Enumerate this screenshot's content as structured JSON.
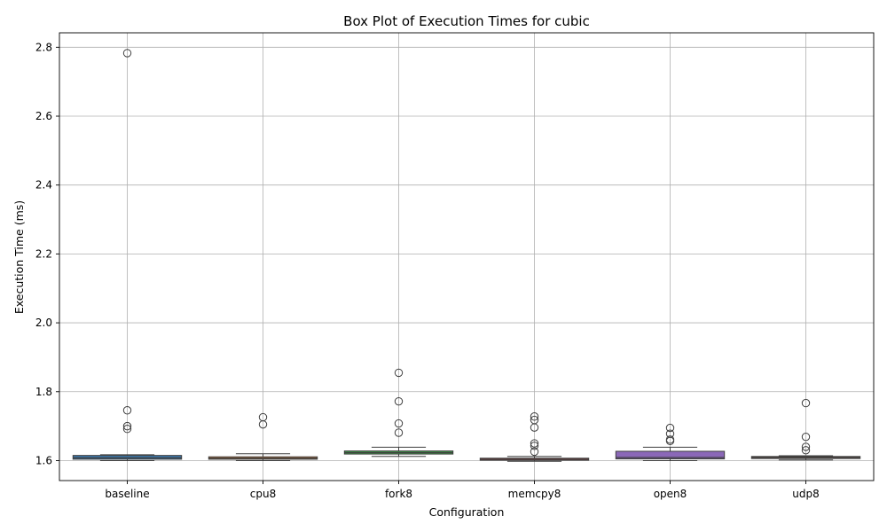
{
  "chart_data": {
    "type": "box",
    "title": "Box Plot of Execution Times for cubic",
    "xlabel": "Configuration",
    "ylabel": "Execution Time (ms)",
    "ylim": [
      1.542,
      2.842
    ],
    "yticks": [
      1.6,
      1.8,
      2.0,
      2.2,
      2.4,
      2.6,
      2.8
    ],
    "ytick_labels": [
      "1.6",
      "1.8",
      "2.0",
      "2.2",
      "2.4",
      "2.6",
      "2.8"
    ],
    "grid": true,
    "categories": [
      "baseline",
      "cpu8",
      "fork8",
      "memcpy8",
      "open8",
      "udp8"
    ],
    "boxes": [
      {
        "name": "baseline",
        "color": "#3a75a8",
        "whisker_low": 1.6,
        "q1": 1.604,
        "median": 1.608,
        "q3": 1.615,
        "whisker_high": 1.617,
        "outliers": [
          2.783,
          1.746,
          1.7,
          1.692
        ]
      },
      {
        "name": "cpu8",
        "color": "#d8803a",
        "whisker_low": 1.6,
        "q1": 1.604,
        "median": 1.607,
        "q3": 1.611,
        "whisker_high": 1.62,
        "outliers": [
          1.726,
          1.705
        ]
      },
      {
        "name": "fork8",
        "color": "#3f9a4a",
        "whisker_low": 1.612,
        "q1": 1.619,
        "median": 1.623,
        "q3": 1.628,
        "whisker_high": 1.639,
        "outliers": [
          1.855,
          1.772,
          1.708,
          1.681
        ]
      },
      {
        "name": "memcpy8",
        "color": "#c0403f",
        "whisker_low": 1.598,
        "q1": 1.601,
        "median": 1.604,
        "q3": 1.607,
        "whisker_high": 1.612,
        "outliers": [
          1.728,
          1.718,
          1.696,
          1.65,
          1.643,
          1.626
        ]
      },
      {
        "name": "open8",
        "color": "#8b68b8",
        "whisker_low": 1.6,
        "q1": 1.605,
        "median": 1.609,
        "q3": 1.627,
        "whisker_high": 1.639,
        "outliers": [
          1.695,
          1.678,
          1.661,
          1.657
        ]
      },
      {
        "name": "udp8",
        "color": "#7a5348",
        "whisker_low": 1.602,
        "q1": 1.606,
        "median": 1.609,
        "q3": 1.612,
        "whisker_high": 1.614,
        "outliers": [
          1.767,
          1.669,
          1.64,
          1.63
        ]
      }
    ]
  }
}
